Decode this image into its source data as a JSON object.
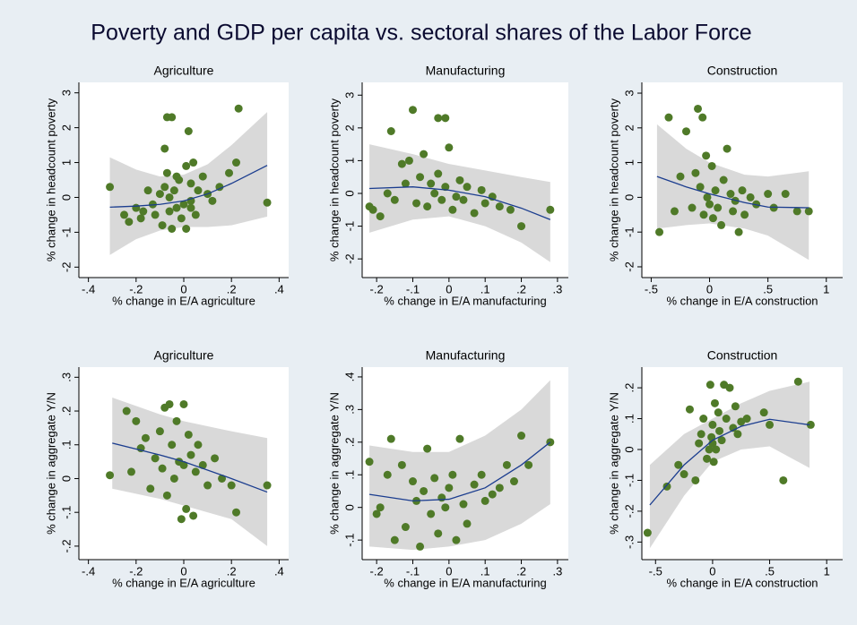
{
  "title": "Poverty and GDP per capita vs. sectoral shares of the Labor Force",
  "chart_data": [
    {
      "type": "scatter",
      "title": "Agriculture",
      "xlabel": "% change in E/A agriculture",
      "ylabel": "% change in headcount poverty",
      "xlim": [
        -0.44,
        0.44
      ],
      "ylim": [
        -2.3,
        3.3
      ],
      "xticks": [
        {
          "value": -0.4,
          "label": "-.4"
        },
        {
          "value": -0.2,
          "label": "-.2"
        },
        0,
        {
          "value": 0.2,
          "label": ".2"
        },
        {
          "value": 0.4,
          "label": ".4"
        }
      ],
      "yticks": [
        -2,
        -1,
        0,
        1,
        2,
        3
      ],
      "color": "#4f7a28",
      "x": [
        -0.31,
        -0.25,
        -0.23,
        -0.2,
        -0.18,
        -0.17,
        -0.15,
        -0.13,
        -0.12,
        -0.1,
        -0.09,
        -0.08,
        -0.07,
        -0.07,
        -0.06,
        -0.05,
        -0.05,
        -0.04,
        -0.03,
        -0.02,
        -0.01,
        0,
        0.01,
        0.01,
        0.02,
        0.03,
        0.03,
        0.04,
        0.05,
        0.06,
        0.08,
        0.1,
        0.12,
        0.15,
        0.19,
        0.22,
        0.23,
        0.35,
        -0.08,
        -0.06,
        0.03,
        -0.03
      ],
      "values": [
        0.3,
        -0.5,
        -0.7,
        -0.3,
        -0.6,
        -0.4,
        0.2,
        -0.2,
        -0.5,
        0.1,
        -0.8,
        0.3,
        2.3,
        0.7,
        -0.4,
        2.3,
        -0.9,
        0.2,
        -0.3,
        0.5,
        -0.6,
        -0.2,
        0.9,
        -0.9,
        1.9,
        0.4,
        -0.1,
        1.0,
        -0.5,
        0.2,
        0.6,
        0.1,
        -0.1,
        0.3,
        0.7,
        1.0,
        2.55,
        -0.15,
        1.4,
        0.0,
        -0.3,
        0.6
      ],
      "fit": {
        "color": "#1b3d8f",
        "band_color": "#d9d9d9",
        "x": [
          -0.31,
          -0.2,
          -0.1,
          0,
          0.1,
          0.2,
          0.35
        ],
        "values": [
          -0.28,
          -0.25,
          -0.2,
          -0.1,
          0.1,
          0.4,
          0.92
        ],
        "lower": [
          -1.65,
          -1.2,
          -0.95,
          -0.85,
          -0.85,
          -0.8,
          -0.55
        ],
        "upper": [
          1.15,
          0.8,
          0.6,
          0.65,
          0.95,
          1.5,
          2.45
        ]
      }
    },
    {
      "type": "scatter",
      "title": "Manufacturing",
      "xlabel": "% change in E/A manufacturing",
      "ylabel": "% change in headcount poverty",
      "xlim": [
        -0.24,
        0.33
      ],
      "ylim": [
        -2.57,
        3.39
      ],
      "xticks": [
        {
          "value": -0.2,
          "label": "-.2"
        },
        {
          "value": -0.1,
          "label": "-.1"
        },
        0,
        {
          "value": 0.1,
          "label": ".1"
        },
        {
          "value": 0.2,
          "label": ".2"
        },
        {
          "value": 0.3,
          "label": ".3"
        }
      ],
      "yticks": [
        -2,
        -1,
        0,
        1,
        2,
        3
      ],
      "color": "#4f7a28",
      "x": [
        -0.22,
        -0.21,
        -0.19,
        -0.17,
        -0.16,
        -0.15,
        -0.13,
        -0.12,
        -0.11,
        -0.1,
        -0.09,
        -0.08,
        -0.07,
        -0.06,
        -0.05,
        -0.04,
        -0.03,
        -0.03,
        -0.02,
        -0.01,
        -0.01,
        0,
        0.01,
        0.02,
        0.03,
        0.04,
        0.05,
        0.07,
        0.09,
        0.1,
        0.12,
        0.14,
        0.17,
        0.2,
        0.28
      ],
      "values": [
        -0.4,
        -0.5,
        -0.7,
        0.0,
        1.9,
        -0.2,
        0.9,
        0.3,
        1.0,
        2.55,
        -0.3,
        0.5,
        1.2,
        -0.4,
        0.3,
        0.0,
        2.3,
        0.6,
        -0.2,
        2.3,
        0.2,
        1.4,
        -0.5,
        -0.1,
        0.4,
        -0.2,
        0.2,
        -0.6,
        0.1,
        -0.3,
        -0.1,
        -0.4,
        -0.5,
        -1.0,
        -0.5
      ],
      "fit": {
        "color": "#1b3d8f",
        "band_color": "#d9d9d9",
        "x": [
          -0.22,
          -0.1,
          0,
          0.1,
          0.2,
          0.28
        ],
        "values": [
          0.15,
          0.2,
          0.1,
          -0.1,
          -0.45,
          -0.8
        ],
        "lower": [
          -1.2,
          -0.8,
          -0.7,
          -1.0,
          -1.5,
          -2.1
        ],
        "upper": [
          1.5,
          1.2,
          0.9,
          0.7,
          0.5,
          0.35
        ]
      }
    },
    {
      "type": "scatter",
      "title": "Construction",
      "xlabel": "% change in E/A construction",
      "ylabel": "% change in headcount poverty",
      "xlim": [
        -0.58,
        1.14
      ],
      "ylim": [
        -2.31,
        3.31
      ],
      "xticks": [
        {
          "value": -0.5,
          "label": "-.5"
        },
        0,
        {
          "value": 0.5,
          "label": ".5"
        },
        1
      ],
      "yticks": [
        -2,
        -1,
        0,
        1,
        2,
        3
      ],
      "color": "#4f7a28",
      "x": [
        -0.43,
        -0.35,
        -0.3,
        -0.25,
        -0.2,
        -0.15,
        -0.12,
        -0.1,
        -0.08,
        -0.06,
        -0.05,
        -0.03,
        -0.02,
        0,
        0.02,
        0.03,
        0.05,
        0.07,
        0.1,
        0.12,
        0.15,
        0.18,
        0.2,
        0.22,
        0.25,
        0.28,
        0.3,
        0.35,
        0.4,
        0.5,
        0.55,
        0.65,
        0.75,
        0.85
      ],
      "values": [
        -1.0,
        2.3,
        -0.4,
        0.6,
        1.9,
        -0.3,
        0.7,
        2.55,
        0.3,
        2.3,
        -0.5,
        1.2,
        0.0,
        -0.2,
        0.9,
        -0.6,
        0.2,
        -0.3,
        -0.8,
        0.5,
        1.4,
        0.1,
        -0.4,
        -0.1,
        -1.0,
        0.2,
        -0.5,
        0.0,
        -0.2,
        0.1,
        -0.3,
        0.1,
        -0.4,
        -0.4
      ],
      "fit": {
        "color": "#1b3d8f",
        "band_color": "#d9d9d9",
        "x": [
          -0.45,
          -0.2,
          0,
          0.3,
          0.5,
          0.85
        ],
        "values": [
          0.6,
          0.3,
          0.1,
          -0.15,
          -0.28,
          -0.3
        ],
        "lower": [
          -0.9,
          -0.8,
          -0.75,
          -0.9,
          -1.1,
          -1.8
        ],
        "upper": [
          2.1,
          1.4,
          1.0,
          0.65,
          0.6,
          0.75
        ]
      }
    },
    {
      "type": "scatter",
      "title": "Agriculture",
      "xlabel": "% change in E/A agriculture",
      "ylabel": "% change in aggregate Y/N",
      "xlim": [
        -0.44,
        0.44
      ],
      "ylim": [
        -0.24,
        0.33
      ],
      "xticks": [
        {
          "value": -0.4,
          "label": "-.4"
        },
        {
          "value": -0.2,
          "label": "-.2"
        },
        0,
        {
          "value": 0.2,
          "label": ".2"
        },
        {
          "value": 0.4,
          "label": ".4"
        }
      ],
      "yticks": [
        {
          "value": -0.2,
          "label": "-.2"
        },
        {
          "value": -0.1,
          "label": "-.1"
        },
        0,
        {
          "value": 0.1,
          "label": ".1"
        },
        {
          "value": 0.2,
          "label": ".2"
        },
        {
          "value": 0.3,
          "label": ".3"
        }
      ],
      "color": "#4f7a28",
      "x": [
        -0.31,
        -0.24,
        -0.22,
        -0.2,
        -0.18,
        -0.16,
        -0.14,
        -0.12,
        -0.1,
        -0.09,
        -0.08,
        -0.07,
        -0.06,
        -0.05,
        -0.04,
        -0.03,
        -0.02,
        -0.01,
        0,
        0,
        0.01,
        0.02,
        0.03,
        0.04,
        0.05,
        0.06,
        0.08,
        0.1,
        0.13,
        0.16,
        0.2,
        0.22,
        0.35
      ],
      "values": [
        0.01,
        0.2,
        0.02,
        0.17,
        0.09,
        0.12,
        -0.03,
        0.06,
        0.14,
        0.03,
        0.21,
        -0.05,
        0.22,
        0.1,
        0.0,
        0.17,
        0.05,
        -0.12,
        0.22,
        0.04,
        -0.09,
        0.13,
        0.07,
        -0.11,
        0.02,
        0.1,
        0.04,
        -0.02,
        0.06,
        0.0,
        -0.02,
        -0.1,
        -0.02
      ],
      "fit": {
        "color": "#1b3d8f",
        "band_color": "#d9d9d9",
        "x": [
          -0.3,
          -0.1,
          0,
          0.2,
          0.35
        ],
        "values": [
          0.105,
          0.07,
          0.05,
          0.0,
          -0.04
        ],
        "lower": [
          -0.03,
          -0.06,
          -0.08,
          -0.12,
          -0.2
        ],
        "upper": [
          0.24,
          0.19,
          0.17,
          0.14,
          0.12
        ]
      }
    },
    {
      "type": "scatter",
      "title": "Manufacturing",
      "xlabel": "% change in E/A manufacturing",
      "ylabel": "% change in aggregate Y/N",
      "xlim": [
        -0.24,
        0.33
      ],
      "ylim": [
        -0.16,
        0.43
      ],
      "xticks": [
        {
          "value": -0.2,
          "label": "-.2"
        },
        {
          "value": -0.1,
          "label": "-.1"
        },
        0,
        {
          "value": 0.1,
          "label": ".1"
        },
        {
          "value": 0.2,
          "label": ".2"
        },
        {
          "value": 0.3,
          "label": ".3"
        }
      ],
      "yticks": [
        {
          "value": -0.1,
          "label": "-.1"
        },
        0,
        {
          "value": 0.1,
          "label": ".1"
        },
        {
          "value": 0.2,
          "label": ".2"
        },
        {
          "value": 0.3,
          "label": ".3"
        },
        {
          "value": 0.4,
          "label": ".4"
        }
      ],
      "color": "#4f7a28",
      "x": [
        -0.22,
        -0.2,
        -0.19,
        -0.17,
        -0.16,
        -0.15,
        -0.13,
        -0.12,
        -0.1,
        -0.09,
        -0.08,
        -0.07,
        -0.06,
        -0.05,
        -0.04,
        -0.03,
        -0.02,
        -0.01,
        0,
        0.01,
        0.02,
        0.03,
        0.04,
        0.05,
        0.07,
        0.09,
        0.1,
        0.12,
        0.14,
        0.16,
        0.18,
        0.2,
        0.22,
        0.28
      ],
      "values": [
        0.14,
        -0.02,
        0.0,
        0.1,
        0.21,
        -0.1,
        0.13,
        -0.06,
        0.08,
        0.02,
        -0.12,
        0.05,
        0.18,
        -0.02,
        0.09,
        -0.08,
        0.03,
        0.0,
        0.06,
        0.1,
        -0.1,
        0.21,
        0.01,
        -0.05,
        0.07,
        0.1,
        0.02,
        0.04,
        0.06,
        0.13,
        0.08,
        0.22,
        0.13,
        0.2
      ],
      "fit": {
        "color": "#1b3d8f",
        "band_color": "#d9d9d9",
        "x": [
          -0.22,
          -0.1,
          0,
          0.1,
          0.2,
          0.28
        ],
        "values": [
          0.04,
          0.02,
          0.025,
          0.06,
          0.13,
          0.2
        ],
        "lower": [
          -0.12,
          -0.13,
          -0.12,
          -0.1,
          -0.05,
          0.01
        ],
        "upper": [
          0.19,
          0.17,
          0.17,
          0.22,
          0.3,
          0.39
        ]
      }
    },
    {
      "type": "scatter",
      "title": "Construction",
      "xlabel": "% change in E/A construction",
      "ylabel": "% change in aggregate Y/N",
      "xlim": [
        -0.62,
        1.14
      ],
      "ylim": [
        -0.357,
        0.267
      ],
      "xticks": [
        {
          "value": -0.5,
          "label": "-.5"
        },
        0,
        {
          "value": 0.5,
          "label": ".5"
        },
        1
      ],
      "yticks": [
        {
          "value": -0.3,
          "label": "-.3"
        },
        {
          "value": -0.2,
          "label": "-.2"
        },
        {
          "value": -0.1,
          "label": "-.1"
        },
        0,
        {
          "value": 0.1,
          "label": ".1"
        },
        {
          "value": 0.2,
          "label": ".2"
        }
      ],
      "color": "#4f7a28",
      "x": [
        -0.57,
        -0.4,
        -0.3,
        -0.25,
        -0.2,
        -0.15,
        -0.12,
        -0.1,
        -0.08,
        -0.05,
        -0.03,
        -0.02,
        -0.01,
        0,
        0,
        0.01,
        0.02,
        0.03,
        0.05,
        0.06,
        0.08,
        0.1,
        0.12,
        0.15,
        0.18,
        0.2,
        0.22,
        0.25,
        0.3,
        0.45,
        0.5,
        0.62,
        0.75,
        0.86
      ],
      "values": [
        -0.27,
        -0.12,
        -0.05,
        -0.08,
        0.13,
        -0.1,
        0.02,
        0.05,
        0.1,
        -0.03,
        0.0,
        0.21,
        0.04,
        0.02,
        0.08,
        -0.04,
        0.15,
        0.0,
        0.12,
        0.06,
        0.03,
        0.21,
        0.1,
        0.2,
        0.07,
        0.14,
        0.05,
        0.09,
        0.1,
        0.12,
        0.08,
        -0.1,
        0.22,
        0.08
      ],
      "fit": {
        "color": "#1b3d8f",
        "band_color": "#d9d9d9",
        "x": [
          -0.55,
          -0.25,
          0,
          0.25,
          0.5,
          0.85
        ],
        "values": [
          -0.18,
          -0.05,
          0.03,
          0.075,
          0.098,
          0.08
        ],
        "lower": [
          -0.32,
          -0.15,
          -0.04,
          0.0,
          0.01,
          -0.06
        ],
        "upper": [
          -0.05,
          0.05,
          0.1,
          0.15,
          0.19,
          0.22
        ]
      }
    }
  ]
}
